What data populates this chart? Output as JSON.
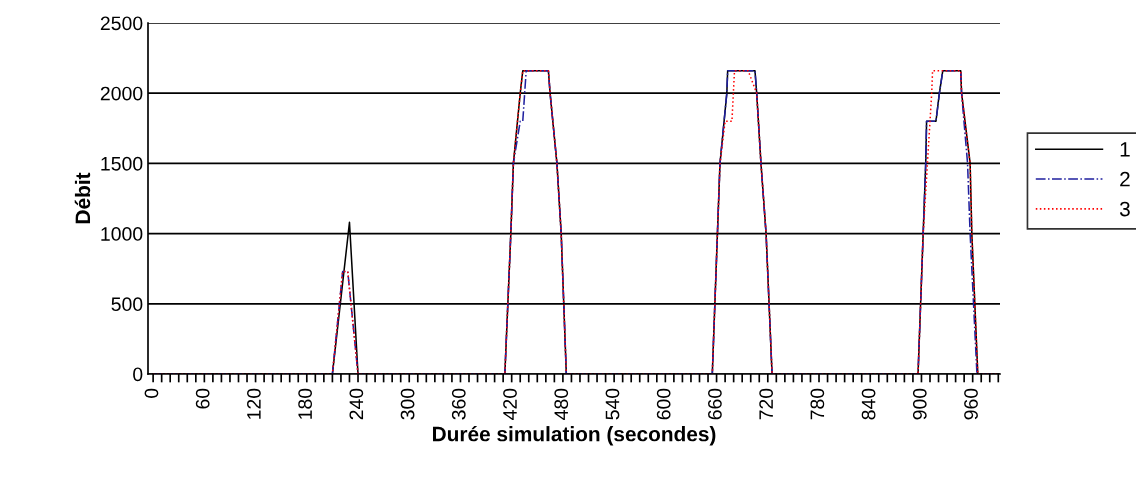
{
  "chart_data": {
    "type": "line",
    "xlabel": "Durée simulation (secondes)",
    "ylabel": "Débit",
    "xlim": [
      -6,
      992
    ],
    "xticks": [
      0,
      {
        "value": 10,
        "label": null
      },
      {
        "value": 20,
        "label": null
      },
      {
        "value": 30,
        "label": null
      },
      {
        "value": 40,
        "label": null
      },
      {
        "value": 50,
        "label": null
      },
      60,
      {
        "value": 70,
        "label": null
      },
      {
        "value": 80,
        "label": null
      },
      {
        "value": 90,
        "label": null
      },
      {
        "value": 100,
        "label": null
      },
      {
        "value": 110,
        "label": null
      },
      120,
      {
        "value": 130,
        "label": null
      },
      {
        "value": 140,
        "label": null
      },
      {
        "value": 150,
        "label": null
      },
      {
        "value": 160,
        "label": null
      },
      {
        "value": 170,
        "label": null
      },
      180,
      {
        "value": 190,
        "label": null
      },
      {
        "value": 200,
        "label": null
      },
      {
        "value": 210,
        "label": null
      },
      {
        "value": 220,
        "label": null
      },
      {
        "value": 230,
        "label": null
      },
      240,
      {
        "value": 250,
        "label": null
      },
      {
        "value": 260,
        "label": null
      },
      {
        "value": 270,
        "label": null
      },
      {
        "value": 280,
        "label": null
      },
      {
        "value": 290,
        "label": null
      },
      300,
      {
        "value": 310,
        "label": null
      },
      {
        "value": 320,
        "label": null
      },
      {
        "value": 330,
        "label": null
      },
      {
        "value": 340,
        "label": null
      },
      {
        "value": 350,
        "label": null
      },
      360,
      {
        "value": 370,
        "label": null
      },
      {
        "value": 380,
        "label": null
      },
      {
        "value": 390,
        "label": null
      },
      {
        "value": 400,
        "label": null
      },
      {
        "value": 410,
        "label": null
      },
      420,
      {
        "value": 430,
        "label": null
      },
      {
        "value": 440,
        "label": null
      },
      {
        "value": 450,
        "label": null
      },
      {
        "value": 460,
        "label": null
      },
      {
        "value": 470,
        "label": null
      },
      480,
      {
        "value": 490,
        "label": null
      },
      {
        "value": 500,
        "label": null
      },
      {
        "value": 510,
        "label": null
      },
      {
        "value": 520,
        "label": null
      },
      {
        "value": 530,
        "label": null
      },
      540,
      {
        "value": 550,
        "label": null
      },
      {
        "value": 560,
        "label": null
      },
      {
        "value": 570,
        "label": null
      },
      {
        "value": 580,
        "label": null
      },
      {
        "value": 590,
        "label": null
      },
      600,
      {
        "value": 610,
        "label": null
      },
      {
        "value": 620,
        "label": null
      },
      {
        "value": 630,
        "label": null
      },
      {
        "value": 640,
        "label": null
      },
      {
        "value": 650,
        "label": null
      },
      660,
      {
        "value": 670,
        "label": null
      },
      {
        "value": 680,
        "label": null
      },
      {
        "value": 690,
        "label": null
      },
      {
        "value": 700,
        "label": null
      },
      {
        "value": 710,
        "label": null
      },
      720,
      {
        "value": 730,
        "label": null
      },
      {
        "value": 740,
        "label": null
      },
      {
        "value": 750,
        "label": null
      },
      {
        "value": 760,
        "label": null
      },
      {
        "value": 770,
        "label": null
      },
      780,
      {
        "value": 790,
        "label": null
      },
      {
        "value": 800,
        "label": null
      },
      {
        "value": 810,
        "label": null
      },
      {
        "value": 820,
        "label": null
      },
      {
        "value": 830,
        "label": null
      },
      840,
      {
        "value": 850,
        "label": null
      },
      {
        "value": 860,
        "label": null
      },
      {
        "value": 870,
        "label": null
      },
      {
        "value": 880,
        "label": null
      },
      {
        "value": 890,
        "label": null
      },
      900,
      {
        "value": 910,
        "label": null
      },
      {
        "value": 920,
        "label": null
      },
      {
        "value": 930,
        "label": null
      },
      {
        "value": 940,
        "label": null
      },
      {
        "value": 950,
        "label": null
      },
      960,
      {
        "value": 970,
        "label": null
      },
      {
        "value": 980,
        "label": null
      },
      {
        "value": 990,
        "label": null
      }
    ],
    "ylim": [
      0,
      2500
    ],
    "yticks": [
      0,
      500,
      1000,
      1500,
      2000,
      2500
    ],
    "grid": "y",
    "legend": "right",
    "marker": "none",
    "series": [
      {
        "name": "1",
        "color": "#000000",
        "line_style": "solid",
        "x": [
          0,
          210,
          230,
          240,
          412,
          419,
          422,
          430,
          433,
          463,
          465,
          473,
          478,
          484,
          655,
          661,
          664,
          672,
          673,
          705,
          707,
          712,
          718,
          725,
          896,
          902,
          905,
          906,
          917,
          921,
          925,
          946,
          947,
          957,
          959,
          966,
          990
        ],
        "values": [
          0,
          0,
          1080,
          0,
          0,
          1000,
          1500,
          2000,
          2160,
          2160,
          2000,
          1500,
          1000,
          0,
          0,
          1000,
          1500,
          2000,
          2160,
          2160,
          2000,
          1500,
          1000,
          0,
          0,
          1000,
          1500,
          1800,
          1800,
          2000,
          2160,
          2160,
          2000,
          1500,
          1000,
          0,
          0
        ]
      },
      {
        "name": "2",
        "color": "#1f1f9f",
        "line_style": "dashdot",
        "x": [
          0,
          210,
          222,
          228,
          240,
          412,
          419,
          422,
          430,
          433,
          437,
          463,
          465,
          473,
          478,
          484,
          655,
          661,
          664,
          672,
          673,
          705,
          707,
          712,
          718,
          725,
          896,
          902,
          905,
          906,
          917,
          921,
          925,
          946,
          947,
          954,
          957,
          965,
          990
        ],
        "values": [
          0,
          0,
          730,
          730,
          0,
          0,
          1000,
          1500,
          1800,
          1800,
          2160,
          2160,
          2000,
          1500,
          1000,
          0,
          0,
          1000,
          1500,
          2000,
          2160,
          2160,
          2000,
          1500,
          1000,
          0,
          0,
          1000,
          1500,
          1800,
          1800,
          2000,
          2160,
          2160,
          2000,
          1500,
          1000,
          0,
          0
        ]
      },
      {
        "name": "3",
        "color": "#ff0000",
        "line_style": "dotted",
        "x": [
          0,
          210,
          222,
          228,
          240,
          412,
          419,
          422,
          430,
          433,
          463,
          465,
          473,
          478,
          484,
          655,
          661,
          664,
          670,
          678,
          681,
          697,
          707,
          712,
          718,
          725,
          896,
          902,
          907,
          912,
          913,
          946,
          947,
          957,
          959,
          966,
          990
        ],
        "values": [
          0,
          0,
          730,
          730,
          0,
          0,
          1000,
          1500,
          2000,
          2160,
          2160,
          2000,
          1500,
          1000,
          0,
          0,
          1000,
          1500,
          1800,
          1800,
          2160,
          2160,
          2000,
          1500,
          1000,
          0,
          0,
          1000,
          1500,
          2000,
          2160,
          2160,
          2000,
          1500,
          1000,
          0,
          0
        ]
      }
    ]
  }
}
